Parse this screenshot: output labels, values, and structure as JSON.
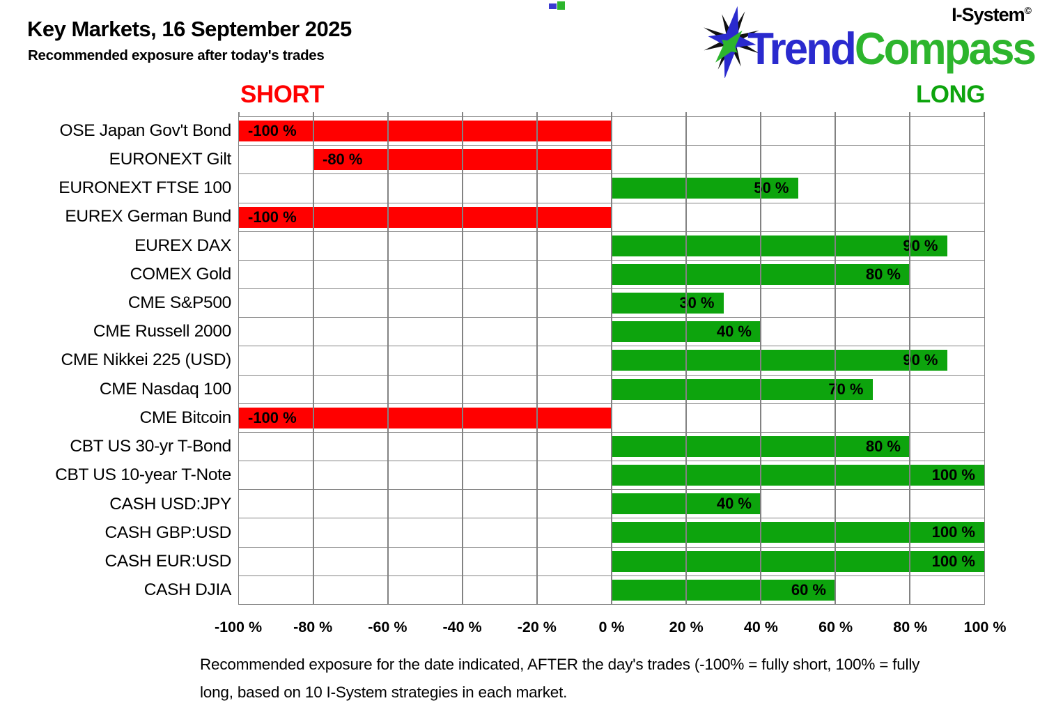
{
  "header": {
    "title": "Key Markets, 16 September 2025",
    "subtitle": "Recommended exposure after today's trades"
  },
  "logo": {
    "trend": "Trend",
    "compass": "Compass",
    "isystem": "I-System",
    "copyright": "©",
    "colors": {
      "blue": "#2a2ace",
      "green": "#2db52d",
      "black": "#111111"
    }
  },
  "chart_data": {
    "type": "bar",
    "orientation": "horizontal",
    "short_label": "SHORT",
    "long_label": "LONG",
    "xlim": [
      -100,
      100
    ],
    "tick_step": 20,
    "grid": true,
    "legend": "none",
    "colors": {
      "negative": "#ff0000",
      "positive": "#0da40d",
      "grid": "#828282",
      "short_text": "#ff0000",
      "long_text": "#0da40d"
    },
    "categories": [
      "OSE Japan Gov't Bond",
      "EURONEXT Gilt",
      "EURONEXT FTSE 100",
      "EUREX German Bund",
      "EUREX DAX",
      "COMEX Gold",
      "CME S&P500",
      "CME Russell 2000",
      "CME Nikkei 225 (USD)",
      "CME Nasdaq 100",
      "CME Bitcoin",
      "CBT US 30-yr T-Bond",
      "CBT US 10-year T-Note",
      "CASH USD:JPY",
      "CASH GBP:USD",
      "CASH EUR:USD",
      "CASH DJIA"
    ],
    "values": [
      -100,
      -80,
      50,
      -100,
      90,
      80,
      30,
      40,
      90,
      70,
      -100,
      80,
      100,
      40,
      100,
      100,
      60
    ],
    "value_labels": [
      "-100 %",
      "-80 %",
      "50 %",
      "-100 %",
      "90 %",
      "80 %",
      "30 %",
      "40 %",
      "90 %",
      "70 %",
      "-100 %",
      "80 %",
      "100 %",
      "40 %",
      "100 %",
      "100 %",
      "60 %"
    ],
    "x_ticks": [
      "-100 %",
      "-80 %",
      "-60 %",
      "-40 %",
      "-20 %",
      "0 %",
      "20 %",
      "40 %",
      "60 %",
      "80 %",
      "100 %"
    ]
  },
  "footer": {
    "lines": [
      "Recommended exposure for the date indicated, AFTER the day's trades (-100% = fully short, 100% = fully",
      "long, based on 10 I-System strategies in each market."
    ]
  }
}
